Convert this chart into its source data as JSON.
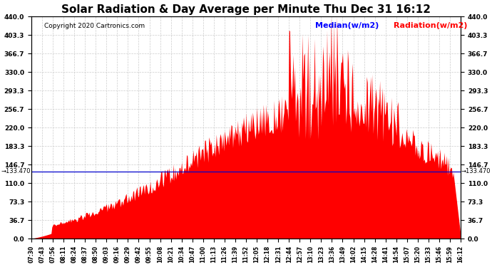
{
  "title": "Solar Radiation & Day Average per Minute Thu Dec 31 16:12",
  "copyright": "Copyright 2020 Cartronics.com",
  "median_label": "Median(w/m2)",
  "radiation_label": "Radiation(w/m2)",
  "median_value": 133.47,
  "y_max": 440.0,
  "y_ticks": [
    0.0,
    36.7,
    73.3,
    110.0,
    146.7,
    183.3,
    220.0,
    256.7,
    293.3,
    330.0,
    366.7,
    403.3,
    440.0
  ],
  "y_tick_labels": [
    "0.0",
    "36.7",
    "73.3",
    "110.0",
    "146.7",
    "183.3",
    "220.0",
    "256.7",
    "293.3",
    "330.0",
    "366.7",
    "403.3",
    "440.0"
  ],
  "background_color": "#ffffff",
  "bar_color": "#ff0000",
  "median_line_color": "#0000cd",
  "grid_color": "#cccccc",
  "x_labels": [
    "07:30",
    "07:43",
    "07:56",
    "08:11",
    "08:24",
    "08:37",
    "08:50",
    "09:03",
    "09:16",
    "09:29",
    "09:42",
    "09:55",
    "10:08",
    "10:21",
    "10:34",
    "10:47",
    "11:00",
    "11:13",
    "11:26",
    "11:39",
    "11:52",
    "12:05",
    "12:18",
    "12:31",
    "12:44",
    "12:57",
    "13:10",
    "13:23",
    "13:36",
    "13:49",
    "14:02",
    "14:15",
    "14:28",
    "14:41",
    "14:54",
    "15:07",
    "15:20",
    "15:33",
    "15:46",
    "15:59",
    "16:12"
  ],
  "median_annotation": "+133.470",
  "title_fontsize": 11,
  "tick_fontsize": 6.5,
  "copyright_fontsize": 6.5,
  "legend_fontsize": 8
}
